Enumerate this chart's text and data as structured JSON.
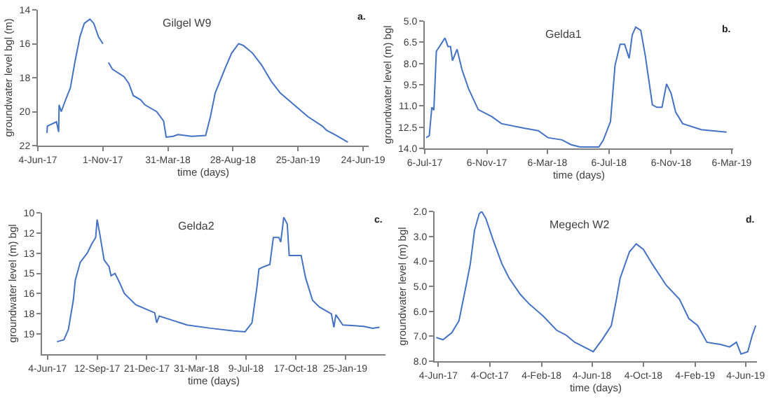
{
  "chart_data": [
    {
      "type": "line",
      "title": "Gilgel W9",
      "ylabel": "groundwater level bgl (m)",
      "xlabel": "time (days)",
      "annotations": [
        "a."
      ],
      "x": [
        "2017-06-25",
        "2017-06-26",
        "2017-07-17",
        "2017-07-22",
        "2017-07-23",
        "2017-07-28",
        "2017-08-07",
        "2017-08-18",
        "2017-08-29",
        "2017-09-09",
        "2017-09-19",
        "2017-10-02",
        "2017-10-11",
        "2017-10-22",
        "2017-11-01",
        "2017-11-07",
        "2017-11-14",
        "2017-11-23",
        "2017-12-20",
        "2017-12-31",
        "2018-01-10",
        "2018-01-27",
        "2018-02-06",
        "2018-03-05",
        "2018-03-21",
        "2018-03-27",
        "2018-04-12",
        "2018-04-23",
        "2018-05-25",
        "2018-06-26",
        "2018-07-07",
        "2018-07-18",
        "2018-07-29",
        "2018-08-09",
        "2018-08-25",
        "2018-09-10",
        "2018-09-21",
        "2018-10-12",
        "2018-11-02",
        "2018-11-24",
        "2018-12-15",
        "2019-01-16",
        "2019-02-17",
        "2019-03-22",
        "2019-04-01",
        "2019-04-23",
        "2019-05-20"
      ],
      "series": [
        {
          "color": "#4472c4",
          "values": [
            21.25,
            20.85,
            20.6,
            21.2,
            19.6,
            20.0,
            19.3,
            18.6,
            17.0,
            15.6,
            14.8,
            14.55,
            14.8,
            15.6,
            16.0,
            null,
            17.1,
            17.5,
            17.95,
            18.35,
            19.05,
            19.3,
            19.6,
            20.0,
            20.55,
            21.5,
            21.45,
            21.35,
            21.45,
            21.4,
            20.3,
            18.9,
            18.2,
            17.5,
            16.55,
            16.0,
            16.1,
            16.55,
            17.25,
            18.2,
            18.9,
            19.6,
            20.3,
            20.85,
            21.1,
            21.4,
            21.8
          ]
        }
      ],
      "xlim": [
        "2017-06-04",
        "2019-07-07"
      ],
      "xticks": [
        {
          "value": "2017-06-04",
          "label": "4-Jun-17"
        },
        {
          "value": "2017-11-01",
          "label": "1-Nov-17"
        },
        {
          "value": "2018-03-31",
          "label": "31-Mar-18"
        },
        {
          "value": "2018-08-28",
          "label": "28-Aug-18"
        },
        {
          "value": "2019-01-25",
          "label": "25-Jan-19"
        },
        {
          "value": "2019-06-24",
          "label": "24-Jun-19"
        }
      ],
      "ylim": [
        22,
        14
      ],
      "yticks": [
        14,
        16,
        18,
        20,
        22
      ]
    },
    {
      "type": "line",
      "title": "Gelda1",
      "ylabel": "groundwater level (m) bgl",
      "xlabel": "time (days)",
      "annotations": [
        "b."
      ],
      "x": [
        "2017-07-09",
        "2017-07-15",
        "2017-07-20",
        "2017-07-24",
        "2017-07-29",
        "2017-08-07",
        "2017-08-15",
        "2017-08-21",
        "2017-08-26",
        "2017-08-30",
        "2017-09-08",
        "2017-09-18",
        "2017-10-01",
        "2017-10-20",
        "2017-11-16",
        "2017-12-05",
        "2018-01-20",
        "2018-02-16",
        "2018-03-07",
        "2018-04-04",
        "2018-04-22",
        "2018-05-10",
        "2018-06-16",
        "2018-06-25",
        "2018-07-09",
        "2018-07-18",
        "2018-07-28",
        "2018-08-06",
        "2018-08-15",
        "2018-08-21",
        "2018-08-28",
        "2018-09-07",
        "2018-09-16",
        "2018-09-30",
        "2018-10-09",
        "2018-10-19",
        "2018-10-28",
        "2018-11-06",
        "2018-11-15",
        "2018-11-29",
        "2019-01-05",
        "2019-02-24"
      ],
      "series": [
        {
          "color": "#4472c4",
          "values": [
            13.24,
            13.1,
            11.1,
            11.3,
            7.14,
            6.65,
            6.2,
            6.8,
            6.8,
            7.8,
            7.0,
            8.46,
            9.8,
            11.26,
            11.76,
            12.25,
            12.58,
            12.75,
            13.24,
            13.4,
            13.74,
            13.9,
            13.9,
            13.4,
            12.1,
            8.13,
            6.65,
            6.65,
            7.64,
            5.99,
            5.43,
            5.66,
            7.47,
            10.93,
            11.1,
            11.1,
            9.45,
            10.1,
            11.43,
            12.25,
            12.68,
            12.85
          ]
        }
      ],
      "xlim": [
        "2017-07-06",
        "2019-03-09"
      ],
      "xticks": [
        {
          "value": "2017-07-06",
          "label": "6-Jul-17"
        },
        {
          "value": "2017-11-06",
          "label": "6-Nov-17"
        },
        {
          "value": "2018-03-06",
          "label": "6-Mar-18"
        },
        {
          "value": "2018-07-06",
          "label": "6-Jul-18"
        },
        {
          "value": "2018-11-06",
          "label": "6-Nov-18"
        },
        {
          "value": "2019-03-06",
          "label": "6-Mar-19"
        }
      ],
      "ylim": [
        14,
        5
      ],
      "yticks": [
        {
          "value": 5,
          "label": "5.0"
        },
        {
          "value": 6.5,
          "label": "6.5"
        },
        {
          "value": 8,
          "label": "8.0"
        },
        {
          "value": 9.5,
          "label": "9.5"
        },
        {
          "value": 11,
          "label": "11.0"
        },
        {
          "value": 12.5,
          "label": "12.5"
        },
        {
          "value": 14,
          "label": "14.0"
        }
      ]
    },
    {
      "type": "line",
      "title": "Gelda2",
      "ylabel": "groundwater level (m) bgl",
      "xlabel": "time (days)",
      "annotations": [
        "c."
      ],
      "x": [
        "2017-06-23",
        "2017-07-07",
        "2017-07-16",
        "2017-07-26",
        "2017-07-30",
        "2017-08-09",
        "2017-08-23",
        "2017-09-01",
        "2017-09-09",
        "2017-09-12",
        "2017-09-17",
        "2017-09-26",
        "2017-10-06",
        "2017-10-10",
        "2017-10-18",
        "2017-10-27",
        "2017-11-06",
        "2017-11-29",
        "2018-01-06",
        "2018-01-10",
        "2018-01-15",
        "2018-02-12",
        "2018-03-12",
        "2018-04-28",
        "2018-06-14",
        "2018-07-07",
        "2018-07-21",
        "2018-07-31",
        "2018-08-04",
        "2018-08-14",
        "2018-08-26",
        "2018-09-02",
        "2018-09-13",
        "2018-09-17",
        "2018-09-23",
        "2018-09-30",
        "2018-10-04",
        "2018-10-12",
        "2018-10-28",
        "2018-11-06",
        "2018-11-20",
        "2018-12-04",
        "2018-12-28",
        "2019-01-02",
        "2019-01-06",
        "2019-01-20",
        "2019-03-03",
        "2019-03-21",
        "2019-04-04"
      ],
      "series": [
        {
          "color": "#4472c4",
          "values": [
            19.57,
            19.43,
            18.67,
            16.5,
            15.0,
            13.67,
            13.0,
            12.33,
            11.83,
            10.5,
            11.5,
            13.5,
            14.0,
            14.67,
            14.5,
            15.17,
            16.0,
            16.83,
            17.43,
            18.17,
            17.67,
            18.0,
            18.33,
            18.57,
            18.77,
            18.83,
            18.17,
            15.5,
            14.17,
            14.0,
            13.83,
            11.83,
            11.83,
            12.17,
            10.33,
            10.83,
            13.17,
            13.17,
            13.17,
            14.83,
            16.5,
            17.0,
            17.5,
            18.5,
            17.57,
            18.33,
            18.43,
            18.57,
            18.5
          ]
        }
      ],
      "xlim": [
        "2017-05-24",
        "2019-04-16"
      ],
      "xticks": [
        {
          "value": "2017-06-04",
          "label": "4-Jun-17"
        },
        {
          "value": "2017-09-12",
          "label": "12-Sep-17"
        },
        {
          "value": "2017-12-21",
          "label": "21-Dec-17"
        },
        {
          "value": "2018-03-31",
          "label": "31-Mar-18"
        },
        {
          "value": "2018-07-09",
          "label": "9-Jul-18"
        },
        {
          "value": "2018-10-17",
          "label": "17-Oct-18"
        },
        {
          "value": "2019-01-25",
          "label": "25-Jan-19"
        }
      ],
      "ylim": [
        20.5,
        10
      ],
      "yticks": [
        {
          "value": 10,
          "label": "10"
        },
        {
          "value": 11.5,
          "label": "12"
        },
        {
          "value": 13,
          "label": "13"
        },
        {
          "value": 14.5,
          "label": "15"
        },
        {
          "value": 16,
          "label": "16"
        },
        {
          "value": 17.5,
          "label": "18"
        },
        {
          "value": 19,
          "label": "19"
        }
      ]
    },
    {
      "type": "line",
      "title": "Megech W2",
      "ylabel": "groundwater level (m) bgl",
      "xlabel": "time (days)",
      "annotations": [
        "d."
      ],
      "x": [
        "2017-05-30",
        "2017-06-15",
        "2017-07-06",
        "2017-07-23",
        "2017-08-08",
        "2017-08-19",
        "2017-08-29",
        "2017-09-09",
        "2017-09-15",
        "2017-09-25",
        "2017-10-12",
        "2017-11-02",
        "2017-11-19",
        "2017-12-16",
        "2018-01-06",
        "2018-02-08",
        "2018-03-12",
        "2018-04-03",
        "2018-04-24",
        "2018-05-16",
        "2018-06-07",
        "2018-06-28",
        "2018-07-20",
        "2018-07-31",
        "2018-08-10",
        "2018-09-01",
        "2018-09-17",
        "2018-10-04",
        "2018-10-25",
        "2018-11-27",
        "2018-12-29",
        "2019-01-20",
        "2019-02-10",
        "2019-03-04",
        "2019-04-05",
        "2019-04-27",
        "2019-05-13",
        "2019-05-24",
        "2019-06-09",
        "2019-06-20",
        "2019-06-28"
      ],
      "series": [
        {
          "color": "#4472c4",
          "values": [
            7.05,
            7.14,
            6.86,
            6.38,
            5.05,
            4.1,
            2.76,
            2.1,
            2.0,
            2.29,
            3.14,
            4.1,
            4.67,
            5.33,
            5.71,
            6.19,
            6.76,
            6.95,
            7.24,
            7.43,
            7.62,
            7.14,
            6.57,
            5.62,
            4.67,
            3.62,
            3.3,
            3.52,
            4.1,
            4.95,
            5.52,
            6.29,
            6.57,
            7.24,
            7.33,
            7.43,
            7.24,
            7.71,
            7.62,
            6.95,
            6.57
          ]
        }
      ],
      "xlim": [
        "2017-05-26",
        "2019-07-01"
      ],
      "xticks": [
        {
          "value": "2017-06-04",
          "label": "4-Jun-17"
        },
        {
          "value": "2017-10-04",
          "label": "4-Oct-17"
        },
        {
          "value": "2018-02-04",
          "label": "4-Feb-18"
        },
        {
          "value": "2018-06-04",
          "label": "4-Jun-18"
        },
        {
          "value": "2018-10-04",
          "label": "4-Oct-18"
        },
        {
          "value": "2019-02-04",
          "label": "4-Feb-19"
        },
        {
          "value": "2019-06-04",
          "label": "4-Jun-19"
        }
      ],
      "ylim": [
        8,
        2
      ],
      "yticks": [
        {
          "value": 2,
          "label": "2.0"
        },
        {
          "value": 3,
          "label": "3.0"
        },
        {
          "value": 4,
          "label": "4.0"
        },
        {
          "value": 5,
          "label": "5.0"
        },
        {
          "value": 6,
          "label": "6.0"
        },
        {
          "value": 7,
          "label": "7.0"
        },
        {
          "value": 8,
          "label": "8.0"
        }
      ]
    }
  ]
}
